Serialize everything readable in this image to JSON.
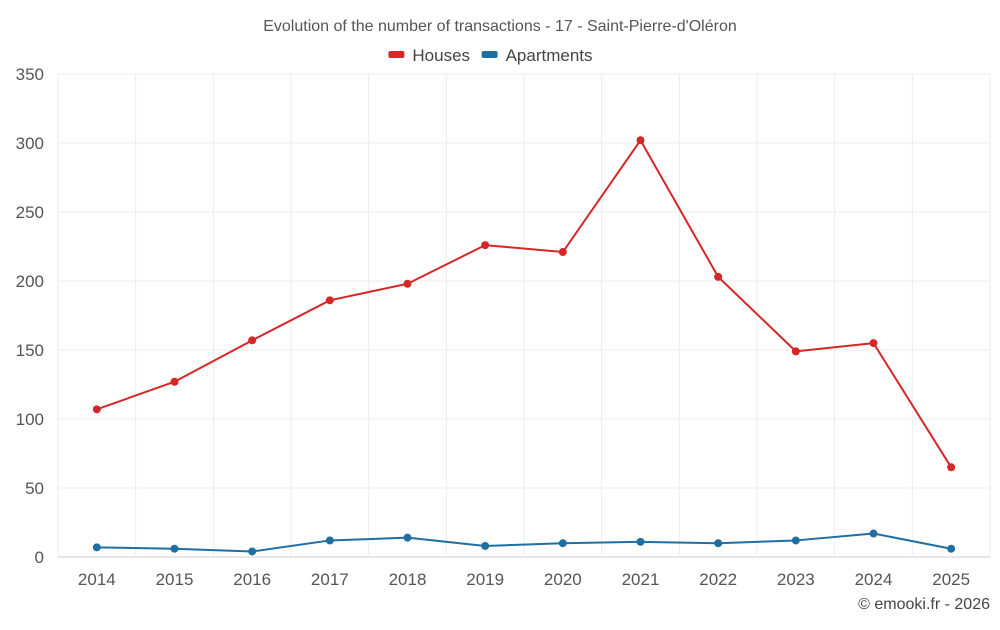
{
  "chart_data": {
    "type": "line",
    "title": "Evolution of the number of transactions - 17 - Saint-Pierre-d'Oléron",
    "xlabel": "",
    "ylabel": "",
    "categories": [
      "2014",
      "2015",
      "2016",
      "2017",
      "2018",
      "2019",
      "2020",
      "2021",
      "2022",
      "2023",
      "2024",
      "2025"
    ],
    "ylim": [
      0,
      350
    ],
    "yticks": [
      0,
      50,
      100,
      150,
      200,
      250,
      300,
      350
    ],
    "grid": true,
    "legend_position": "top-center",
    "series": [
      {
        "name": "Houses",
        "color": "#d62728",
        "values": [
          107,
          127,
          157,
          186,
          198,
          226,
          221,
          302,
          203,
          149,
          155,
          65
        ]
      },
      {
        "name": "Apartments",
        "color": "#1f6fa0",
        "values": [
          7,
          6,
          4,
          12,
          14,
          8,
          10,
          11,
          10,
          12,
          17,
          6
        ]
      }
    ]
  },
  "credit": "© emooki.fr - 2026"
}
